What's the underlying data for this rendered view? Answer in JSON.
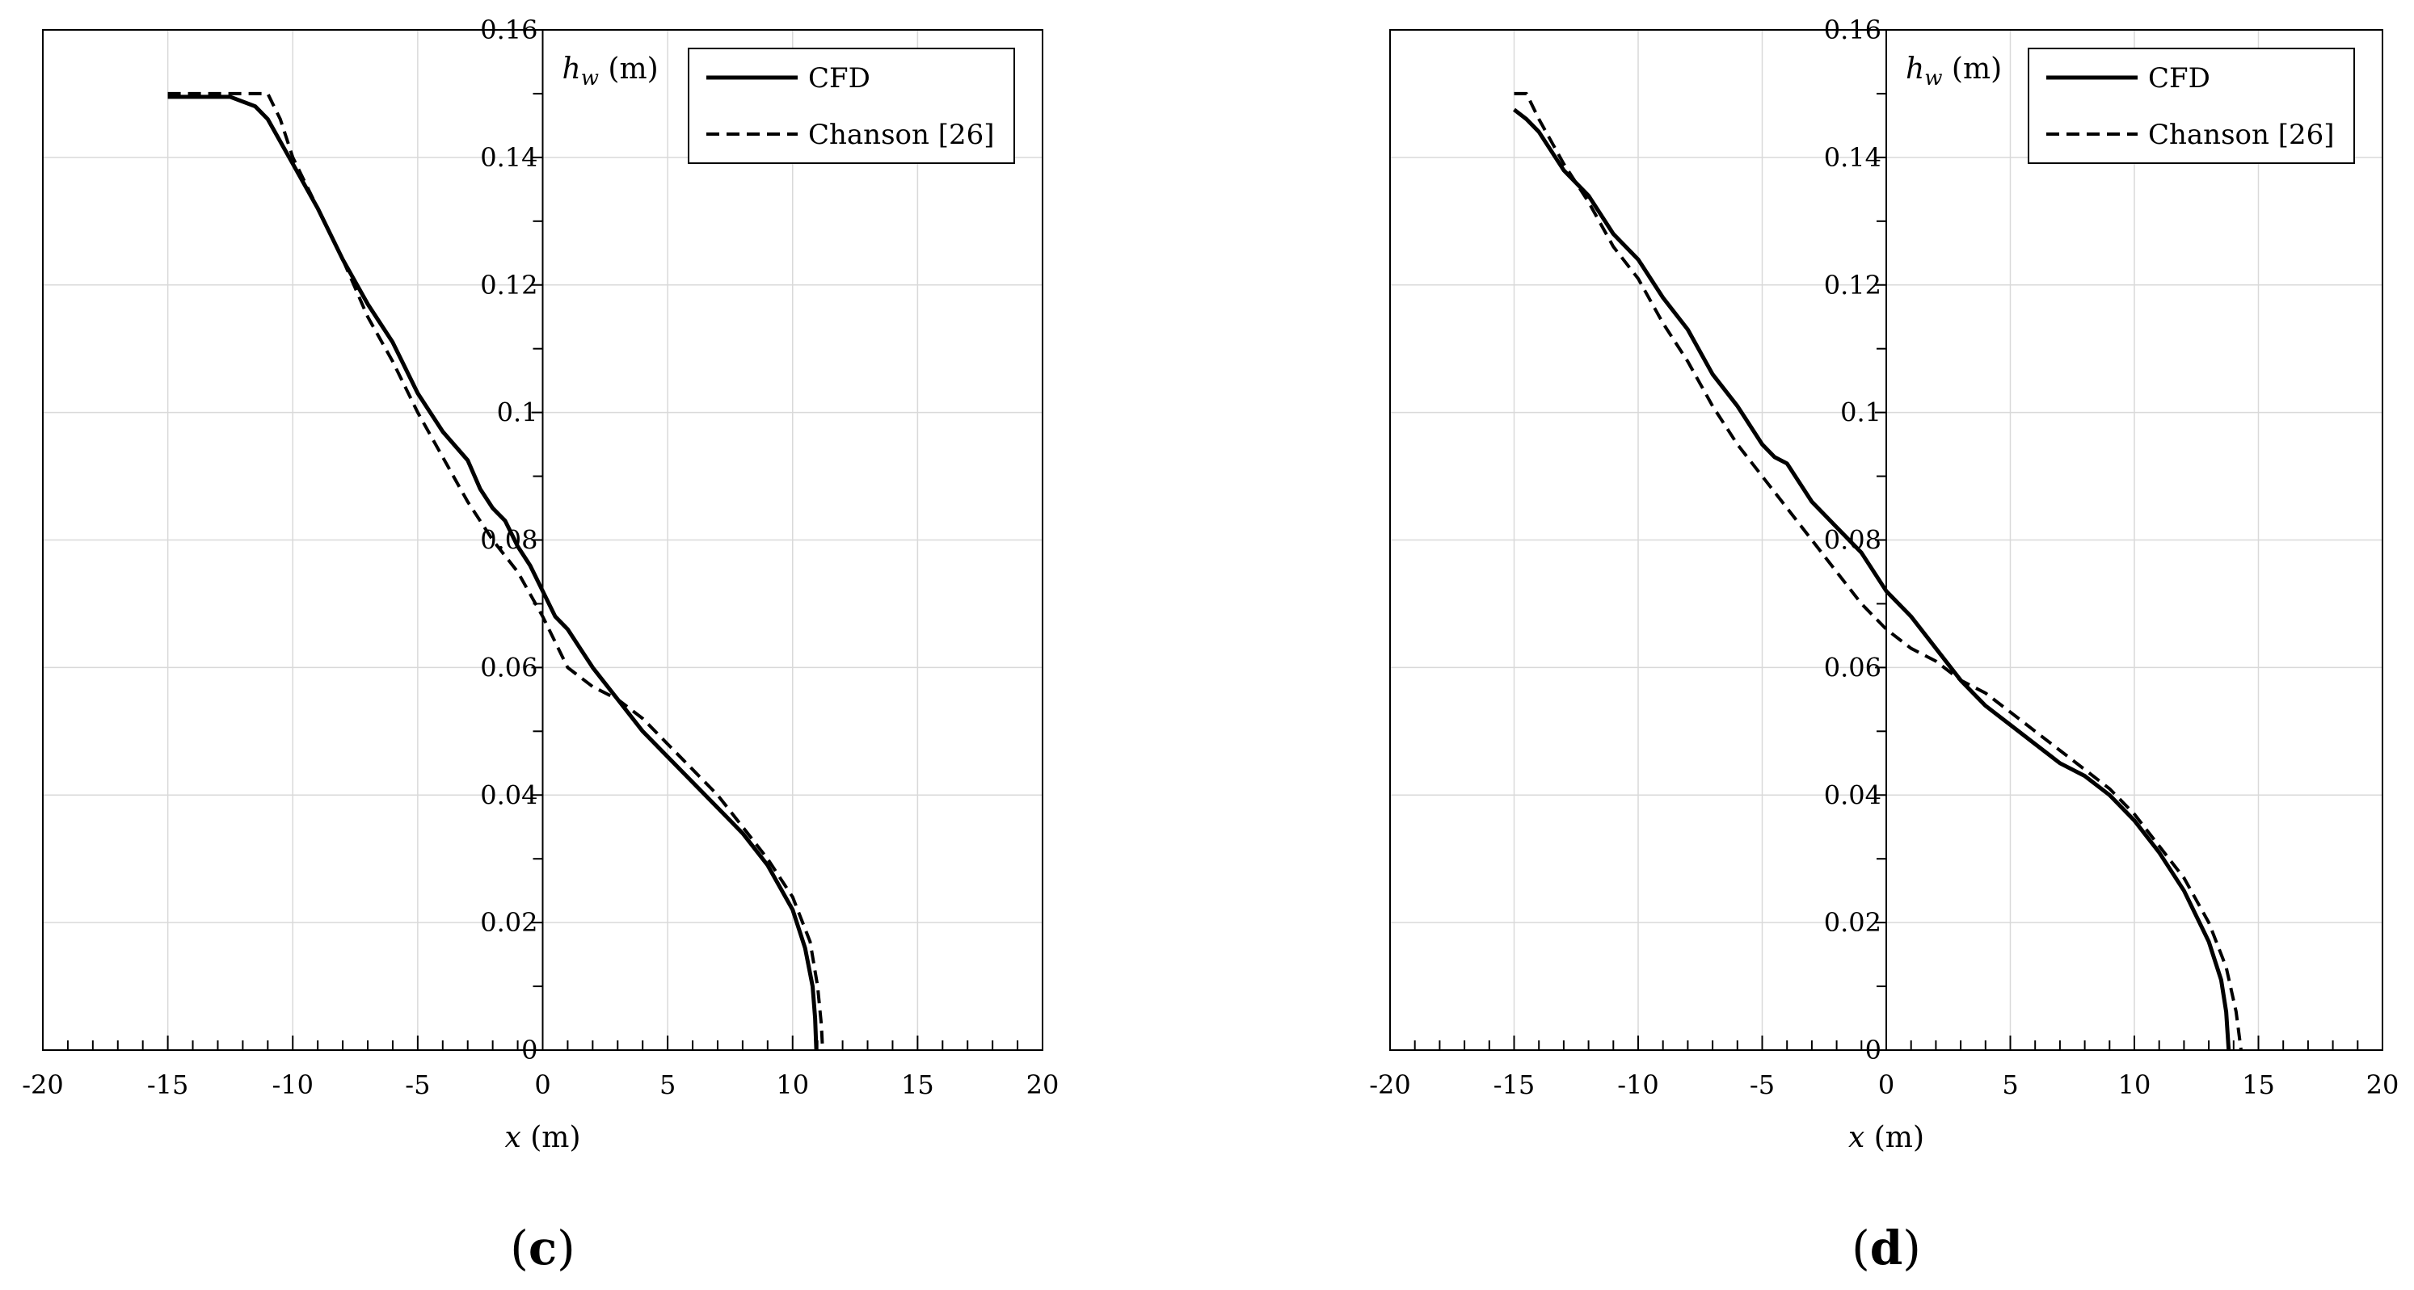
{
  "chart_data": [
    {
      "type": "line",
      "panel_label": "c",
      "xlabel": "x (m)",
      "ylabel": "h_w (m)",
      "xlim": [
        -20,
        20
      ],
      "ylim": [
        0,
        0.16
      ],
      "x_ticks": [
        "-20",
        "-15",
        "-10",
        "-5",
        "0",
        "5",
        "10",
        "15",
        "20"
      ],
      "y_ticks": [
        "0",
        "0.02",
        "0.04",
        "0.06",
        "0.08",
        "0.1",
        "0.12",
        "0.14",
        "0.16"
      ],
      "grid": true,
      "legend_position": "top-right",
      "series": [
        {
          "name": "CFD",
          "style": "solid",
          "points": [
            [
              -15,
              0.1495
            ],
            [
              -12.5,
              0.1495
            ],
            [
              -11.5,
              0.148
            ],
            [
              -11,
              0.146
            ],
            [
              -10,
              0.139
            ],
            [
              -9,
              0.132
            ],
            [
              -8,
              0.124
            ],
            [
              -7,
              0.117
            ],
            [
              -6,
              0.111
            ],
            [
              -5,
              0.103
            ],
            [
              -4,
              0.097
            ],
            [
              -3,
              0.0925
            ],
            [
              -2.5,
              0.088
            ],
            [
              -2,
              0.085
            ],
            [
              -1.5,
              0.083
            ],
            [
              -1,
              0.079
            ],
            [
              -0.5,
              0.076
            ],
            [
              0,
              0.072
            ],
            [
              0.5,
              0.068
            ],
            [
              1,
              0.066
            ],
            [
              1.5,
              0.063
            ],
            [
              2,
              0.06
            ],
            [
              3,
              0.055
            ],
            [
              4,
              0.05
            ],
            [
              5,
              0.046
            ],
            [
              6,
              0.042
            ],
            [
              7,
              0.038
            ],
            [
              8,
              0.034
            ],
            [
              9,
              0.029
            ],
            [
              10,
              0.022
            ],
            [
              10.5,
              0.016
            ],
            [
              10.8,
              0.01
            ],
            [
              10.9,
              0.005
            ],
            [
              10.95,
              0
            ]
          ]
        },
        {
          "name": "Chanson [26]",
          "style": "dashed",
          "points": [
            [
              -15,
              0.15
            ],
            [
              -11,
              0.15
            ],
            [
              -10.5,
              0.146
            ],
            [
              -10,
              0.14
            ],
            [
              -9,
              0.132
            ],
            [
              -8,
              0.124
            ],
            [
              -7,
              0.115
            ],
            [
              -6,
              0.108
            ],
            [
              -5,
              0.1
            ],
            [
              -4,
              0.093
            ],
            [
              -3,
              0.086
            ],
            [
              -2,
              0.08
            ],
            [
              -1,
              0.075
            ],
            [
              0,
              0.068
            ],
            [
              0.5,
              0.064
            ],
            [
              1,
              0.06
            ],
            [
              2,
              0.057
            ],
            [
              3,
              0.055
            ],
            [
              4,
              0.052
            ],
            [
              5,
              0.048
            ],
            [
              6,
              0.044
            ],
            [
              7,
              0.04
            ],
            [
              8,
              0.035
            ],
            [
              9,
              0.03
            ],
            [
              10,
              0.024
            ],
            [
              10.7,
              0.017
            ],
            [
              11,
              0.01
            ],
            [
              11.15,
              0.004
            ],
            [
              11.2,
              0
            ]
          ]
        }
      ]
    },
    {
      "type": "line",
      "panel_label": "d",
      "xlabel": "x (m)",
      "ylabel": "h_w (m)",
      "xlim": [
        -20,
        20
      ],
      "ylim": [
        0,
        0.16
      ],
      "x_ticks": [
        "-20",
        "-15",
        "-10",
        "-5",
        "0",
        "5",
        "10",
        "15",
        "20"
      ],
      "y_ticks": [
        "0",
        "0.02",
        "0.04",
        "0.06",
        "0.08",
        "0.1",
        "0.12",
        "0.14",
        "0.16"
      ],
      "grid": true,
      "legend_position": "top-right",
      "series": [
        {
          "name": "CFD",
          "style": "solid",
          "points": [
            [
              -15,
              0.1475
            ],
            [
              -14.5,
              0.146
            ],
            [
              -14,
              0.144
            ],
            [
              -13,
              0.138
            ],
            [
              -12,
              0.134
            ],
            [
              -11,
              0.128
            ],
            [
              -10,
              0.124
            ],
            [
              -9,
              0.118
            ],
            [
              -8,
              0.113
            ],
            [
              -7,
              0.106
            ],
            [
              -6,
              0.101
            ],
            [
              -5,
              0.095
            ],
            [
              -4.5,
              0.093
            ],
            [
              -4,
              0.092
            ],
            [
              -3,
              0.086
            ],
            [
              -2,
              0.082
            ],
            [
              -1,
              0.078
            ],
            [
              0,
              0.072
            ],
            [
              1,
              0.068
            ],
            [
              2,
              0.063
            ],
            [
              3,
              0.058
            ],
            [
              4,
              0.054
            ],
            [
              5,
              0.051
            ],
            [
              6,
              0.048
            ],
            [
              7,
              0.045
            ],
            [
              8,
              0.043
            ],
            [
              9,
              0.04
            ],
            [
              10,
              0.036
            ],
            [
              11,
              0.031
            ],
            [
              12,
              0.025
            ],
            [
              13,
              0.017
            ],
            [
              13.5,
              0.011
            ],
            [
              13.7,
              0.006
            ],
            [
              13.8,
              0
            ]
          ]
        },
        {
          "name": "Chanson [26]",
          "style": "dashed",
          "points": [
            [
              -15,
              0.15
            ],
            [
              -14.5,
              0.15
            ],
            [
              -14,
              0.146
            ],
            [
              -13,
              0.139
            ],
            [
              -12,
              0.133
            ],
            [
              -11,
              0.126
            ],
            [
              -10,
              0.121
            ],
            [
              -9,
              0.114
            ],
            [
              -8,
              0.108
            ],
            [
              -7,
              0.101
            ],
            [
              -6,
              0.095
            ],
            [
              -5,
              0.09
            ],
            [
              -4,
              0.085
            ],
            [
              -3,
              0.08
            ],
            [
              -2,
              0.075
            ],
            [
              -1,
              0.07
            ],
            [
              0,
              0.066
            ],
            [
              1,
              0.063
            ],
            [
              2,
              0.061
            ],
            [
              3,
              0.058
            ],
            [
              4,
              0.056
            ],
            [
              5,
              0.053
            ],
            [
              6,
              0.05
            ],
            [
              7,
              0.047
            ],
            [
              8,
              0.044
            ],
            [
              9,
              0.041
            ],
            [
              10,
              0.037
            ],
            [
              11,
              0.032
            ],
            [
              12,
              0.027
            ],
            [
              13,
              0.02
            ],
            [
              13.7,
              0.013
            ],
            [
              14.1,
              0.006
            ],
            [
              14.3,
              0
            ]
          ]
        }
      ]
    }
  ]
}
